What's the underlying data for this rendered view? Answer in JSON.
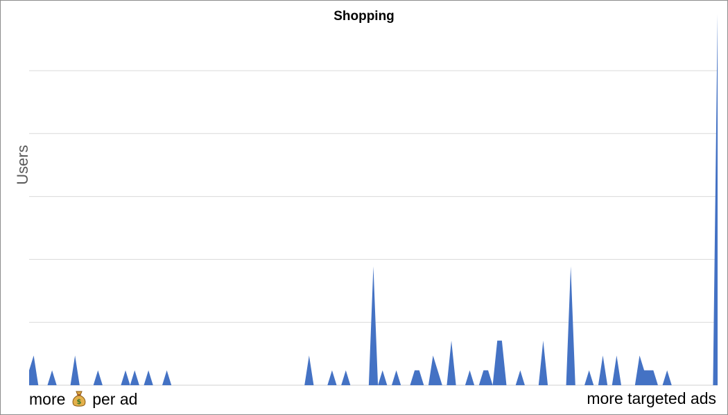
{
  "chart_data": {
    "type": "area",
    "title": "Shopping",
    "ylabel": "Users",
    "xlabel_left_text_before": "more",
    "xlabel_left_icon": "money-bag-icon",
    "xlabel_left_text_after": "per ad",
    "xlabel_right": "more targeted ads",
    "ylim": [
      0,
      5
    ],
    "grid": true,
    "series_color": "#4472C4",
    "values": [
      0.2,
      0.4,
      0,
      0,
      0,
      0.2,
      0,
      0,
      0,
      0,
      0.4,
      0,
      0,
      0,
      0,
      0.2,
      0,
      0,
      0,
      0,
      0,
      0.2,
      0,
      0.2,
      0,
      0,
      0.2,
      0,
      0,
      0,
      0.2,
      0,
      0,
      0,
      0,
      0,
      0,
      0,
      0,
      0,
      0,
      0,
      0,
      0,
      0,
      0,
      0,
      0,
      0,
      0,
      0,
      0,
      0,
      0,
      0,
      0,
      0,
      0,
      0,
      0,
      0,
      0.4,
      0,
      0,
      0,
      0,
      0.2,
      0,
      0,
      0.2,
      0,
      0,
      0,
      0,
      0,
      1.6,
      0,
      0.2,
      0,
      0,
      0.2,
      0,
      0,
      0,
      0.2,
      0.2,
      0,
      0,
      0.4,
      0.2,
      0,
      0,
      0.6,
      0,
      0,
      0,
      0.2,
      0,
      0,
      0.2,
      0.2,
      0,
      0.6,
      0.6,
      0,
      0,
      0,
      0.2,
      0,
      0,
      0,
      0,
      0.6,
      0,
      0,
      0,
      0,
      0,
      1.6,
      0,
      0,
      0,
      0.2,
      0,
      0,
      0.4,
      0,
      0,
      0.4,
      0,
      0,
      0,
      0,
      0.4,
      0.2,
      0.2,
      0.2,
      0,
      0,
      0.2,
      0,
      0,
      0,
      0,
      0,
      0,
      0,
      0,
      0,
      0,
      5.0
    ]
  }
}
